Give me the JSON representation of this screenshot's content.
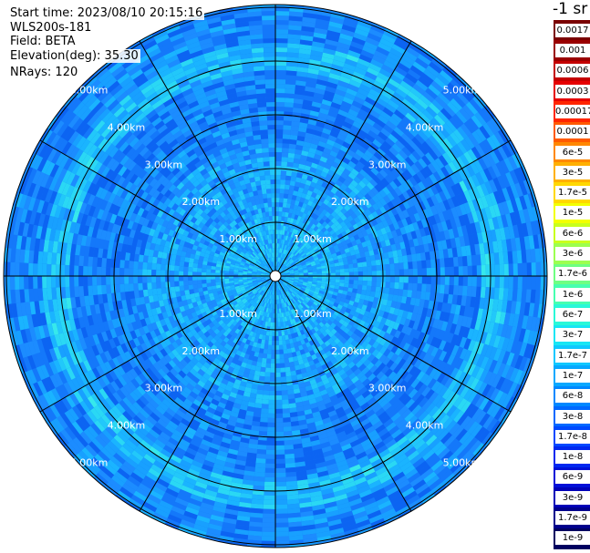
{
  "header": {
    "start_time": "Start time: 2023/08/10 20:15:16",
    "instrument": "WLS200s-181",
    "field": "Field: BETA",
    "elevation": "Elevation(deg): 35.30",
    "nrays": "NRays: 120"
  },
  "range_labels": [
    "1.00km",
    "2.00km",
    "3.00km",
    "4.00km",
    "5.00km"
  ],
  "colorbar": {
    "unit": "-1 sr",
    "labels": [
      "0.0017",
      "0.001",
      "0.0006",
      "0.0003",
      "0.00017",
      "0.0001",
      "6e-5",
      "3e-5",
      "1.7e-5",
      "1e-5",
      "6e-6",
      "3e-6",
      "1.7e-6",
      "1e-6",
      "6e-7",
      "3e-7",
      "1.7e-7",
      "1e-7",
      "6e-8",
      "3e-8",
      "1.7e-8",
      "1e-8",
      "6e-9",
      "3e-9",
      "1.7e-9",
      "1e-9"
    ],
    "colors": [
      "#7a0000",
      "#9a0000",
      "#c40000",
      "#e60000",
      "#ff2600",
      "#ff5a00",
      "#ff8800",
      "#ffb000",
      "#ffd800",
      "#f2ff00",
      "#c8ff1e",
      "#9cff50",
      "#6eff82",
      "#46ffb0",
      "#2af8d8",
      "#18e6f4",
      "#10c8ff",
      "#08a8ff",
      "#0088ff",
      "#0068ff",
      "#0048ff",
      "#0028f0",
      "#0010d8",
      "#0000b8",
      "#00008c",
      "#000060"
    ]
  }
}
